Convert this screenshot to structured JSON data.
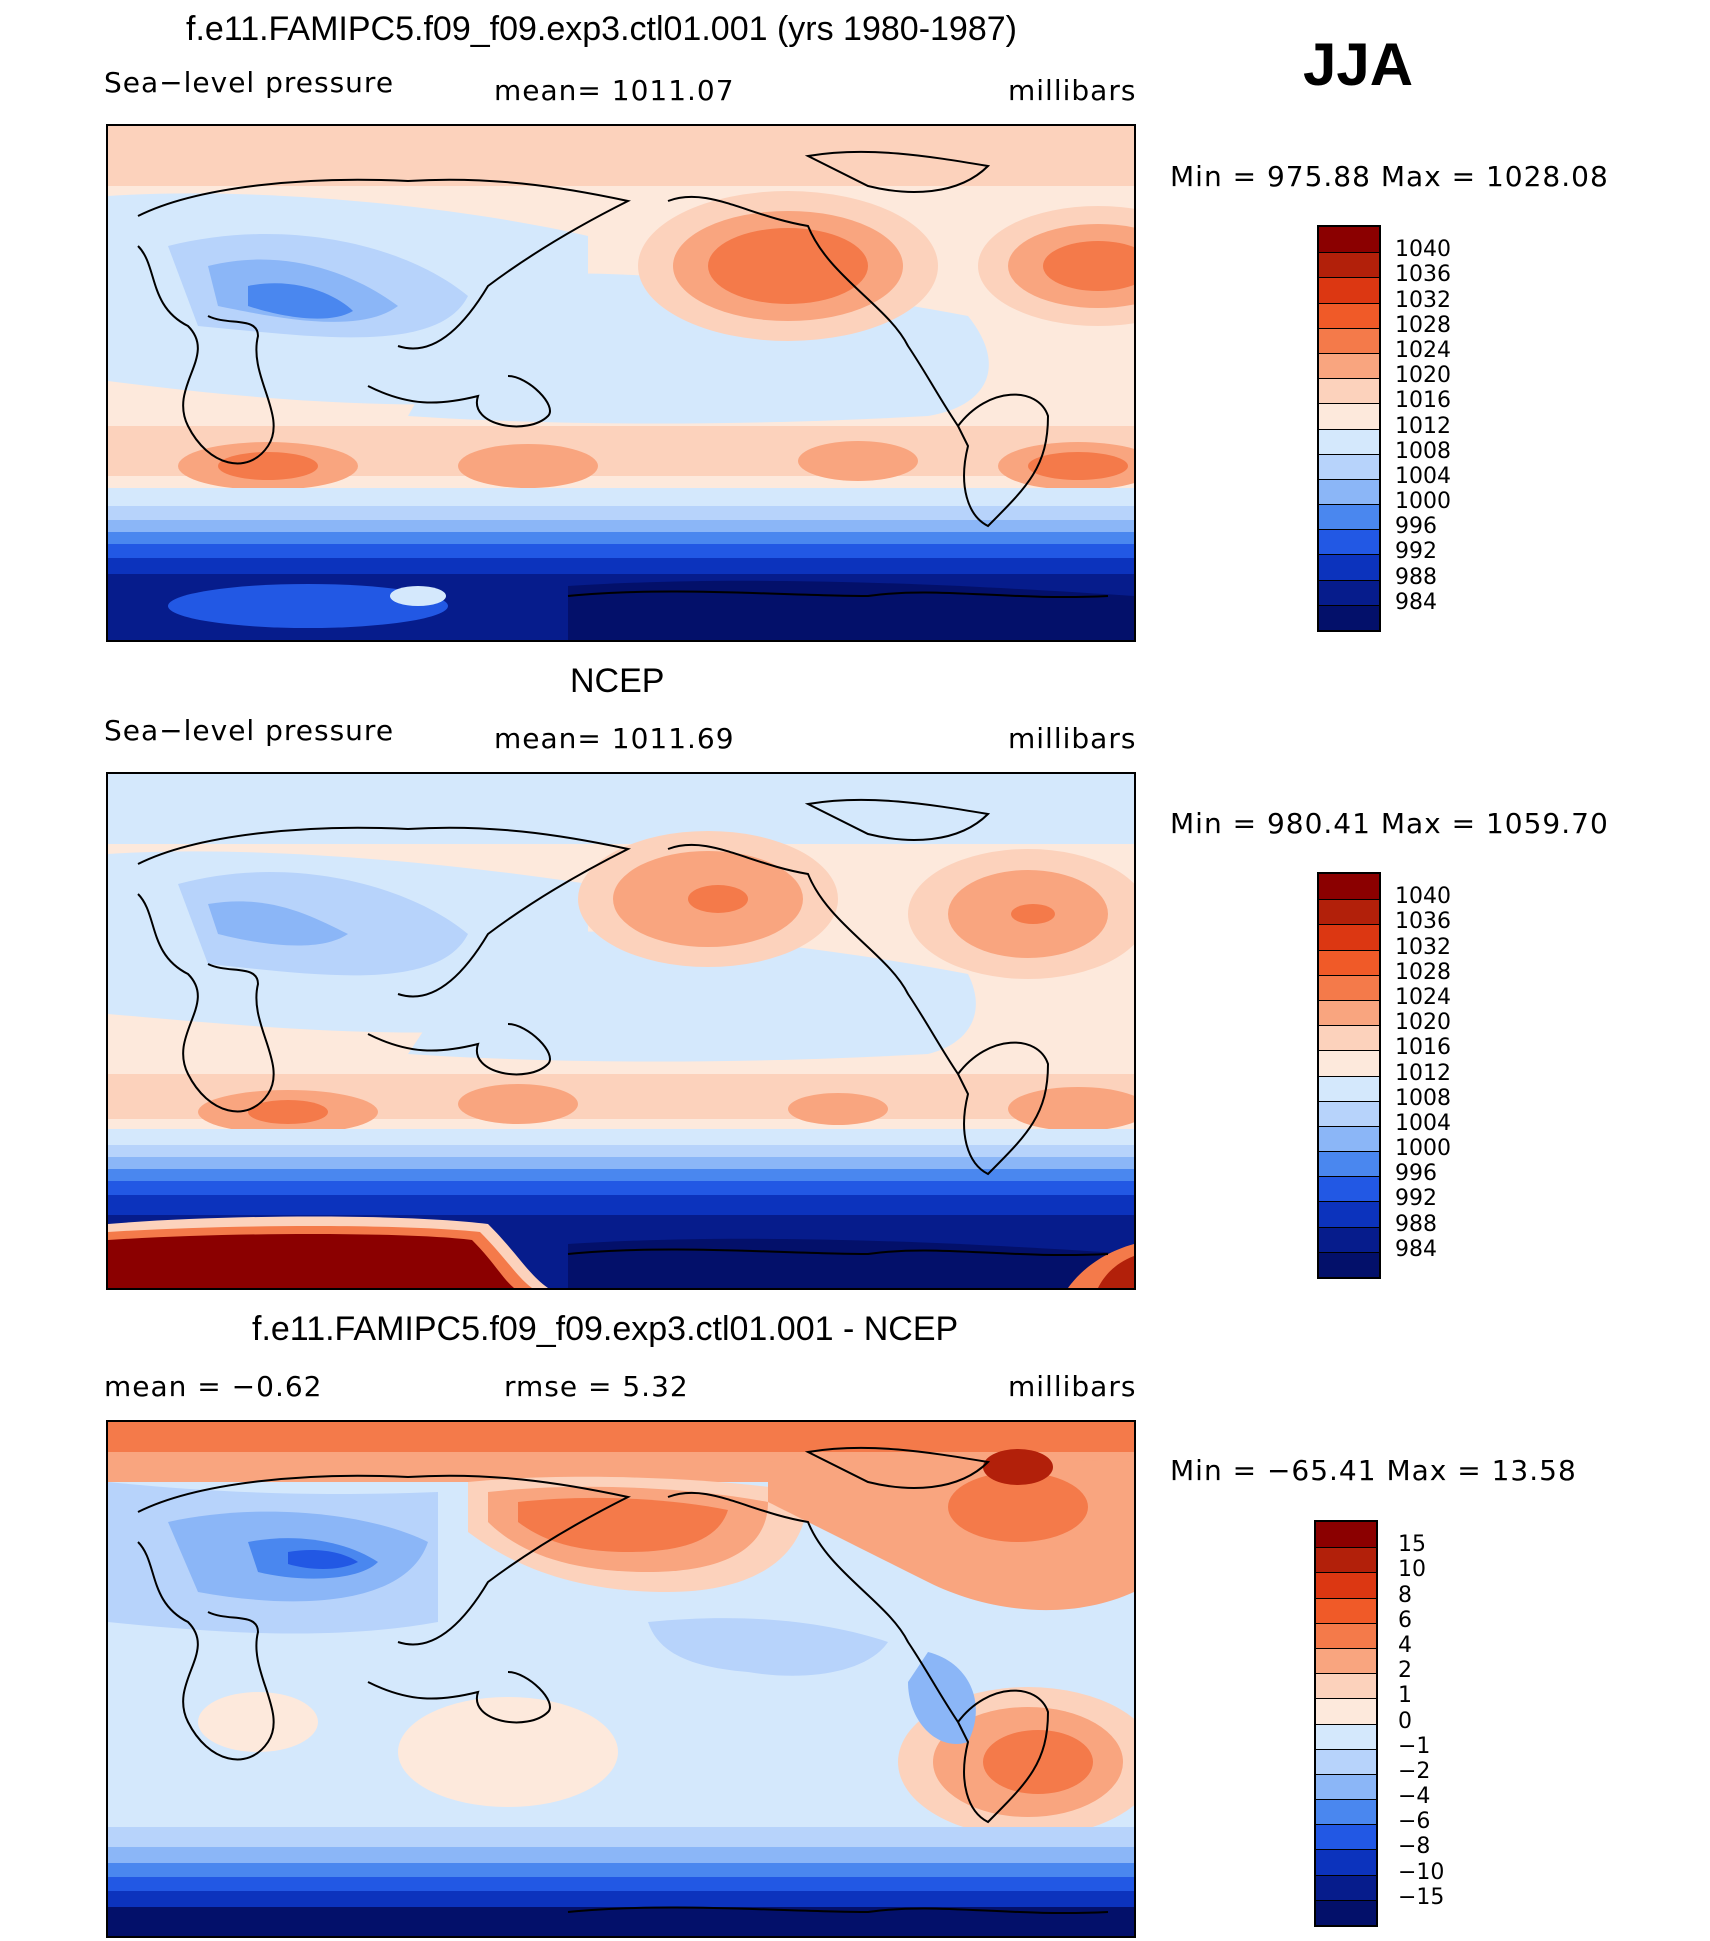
{
  "season": "JJA",
  "panels": [
    {
      "title": "f.e11.FAMIPC5.f09_f09.exp3.ctl01.001 (yrs 1980-1987)",
      "left": "Sea−level pressure",
      "center": "mean=  1011.07",
      "right": "millibars",
      "minmax": "Min  =  975.88  Max  =  1028.08",
      "colorbar": {
        "labels": [
          "1040",
          "1036",
          "1032",
          "1028",
          "1024",
          "1020",
          "1016",
          "1012",
          "1008",
          "1004",
          "1000",
          "996",
          "992",
          "988",
          "984"
        ],
        "colors": [
          "#8b0000",
          "#b2200a",
          "#dc3712",
          "#f05a28",
          "#f47a4a",
          "#f9a57f",
          "#fcd2bc",
          "#fde9dc",
          "#d4e8fc",
          "#b7d3fb",
          "#8bb6f7",
          "#4a87ef",
          "#2258e4",
          "#0c33bd",
          "#061c8c",
          "#03106a"
        ]
      }
    },
    {
      "title": "NCEP",
      "left": "Sea−level pressure",
      "center": "mean=  1011.69",
      "right": "millibars",
      "minmax": "Min  =  980.41  Max  =  1059.70",
      "colorbar": {
        "labels": [
          "1040",
          "1036",
          "1032",
          "1028",
          "1024",
          "1020",
          "1016",
          "1012",
          "1008",
          "1004",
          "1000",
          "996",
          "992",
          "988",
          "984"
        ],
        "colors": [
          "#8b0000",
          "#b2200a",
          "#dc3712",
          "#f05a28",
          "#f47a4a",
          "#f9a57f",
          "#fcd2bc",
          "#fde9dc",
          "#d4e8fc",
          "#b7d3fb",
          "#8bb6f7",
          "#4a87ef",
          "#2258e4",
          "#0c33bd",
          "#061c8c",
          "#03106a"
        ]
      }
    },
    {
      "title": "f.e11.FAMIPC5.f09_f09.exp3.ctl01.001 - NCEP",
      "left": "mean  =    −0.62",
      "center": "rmse  =     5.32",
      "right": "millibars",
      "minmax": "Min  =  −65.41  Max  =    13.58",
      "colorbar": {
        "labels": [
          "15",
          "10",
          "8",
          "6",
          "4",
          "2",
          "1",
          "0",
          "−1",
          "−2",
          "−4",
          "−6",
          "−8",
          "−10",
          "−15"
        ],
        "colors": [
          "#8b0000",
          "#b2200a",
          "#dc3712",
          "#f05a28",
          "#f47a4a",
          "#f9a57f",
          "#fcd2bc",
          "#fde9dc",
          "#d4e8fc",
          "#b7d3fb",
          "#8bb6f7",
          "#4a87ef",
          "#2258e4",
          "#0c33bd",
          "#061c8c",
          "#03106a"
        ]
      }
    }
  ]
}
